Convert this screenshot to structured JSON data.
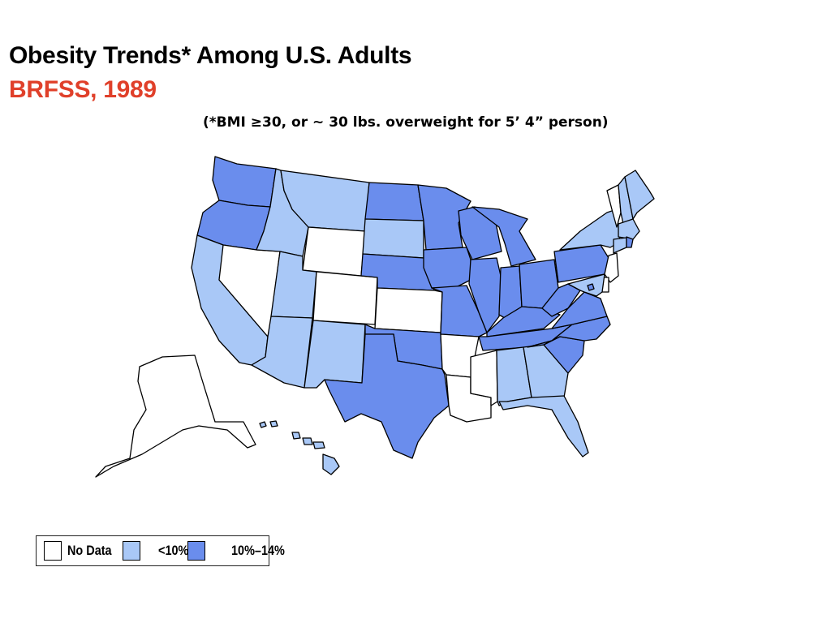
{
  "header": {
    "title": "Obesity Trends* Among U.S. Adults",
    "subtitle": "BRFSS, 1989",
    "footnote": "(*BMI ≥30, or ~ 30 lbs. overweight for 5’ 4” person)"
  },
  "colors": {
    "no_data": "#ffffff",
    "lt10": "#a9c8f7",
    "10to14": "#6a8ded",
    "title": "#000000",
    "subtitle": "#e0402a"
  },
  "legend": {
    "items": [
      {
        "label": "No Data",
        "category": "no_data"
      },
      {
        "label": "<10%",
        "category": "lt10"
      },
      {
        "label": "10%–14%",
        "category": "10to14"
      }
    ]
  },
  "map_data": {
    "states": {
      "WA": "10to14",
      "OR": "10to14",
      "CA": "lt10",
      "NV": "no_data",
      "ID": "lt10",
      "MT": "lt10",
      "WY": "no_data",
      "UT": "lt10",
      "CO": "no_data",
      "AZ": "lt10",
      "NM": "lt10",
      "ND": "10to14",
      "SD": "lt10",
      "NE": "10to14",
      "KS": "no_data",
      "OK": "10to14",
      "TX": "10to14",
      "MN": "10to14",
      "IA": "10to14",
      "MO": "10to14",
      "AR": "no_data",
      "LA": "no_data",
      "WI": "10to14",
      "IL": "10to14",
      "MI": "10to14",
      "IN": "10to14",
      "OH": "10to14",
      "KY": "10to14",
      "TN": "10to14",
      "MS": "no_data",
      "AL": "lt10",
      "GA": "lt10",
      "FL": "lt10",
      "SC": "10to14",
      "NC": "10to14",
      "VA": "10to14",
      "WV": "10to14",
      "PA": "10to14",
      "NY": "lt10",
      "VT": "no_data",
      "NH": "lt10",
      "ME": "lt10",
      "MA": "lt10",
      "RI": "10to14",
      "CT": "lt10",
      "NJ": "no_data",
      "DE": "no_data",
      "MD": "lt10",
      "DC": "10to14",
      "AK": "no_data",
      "HI": "lt10"
    }
  }
}
